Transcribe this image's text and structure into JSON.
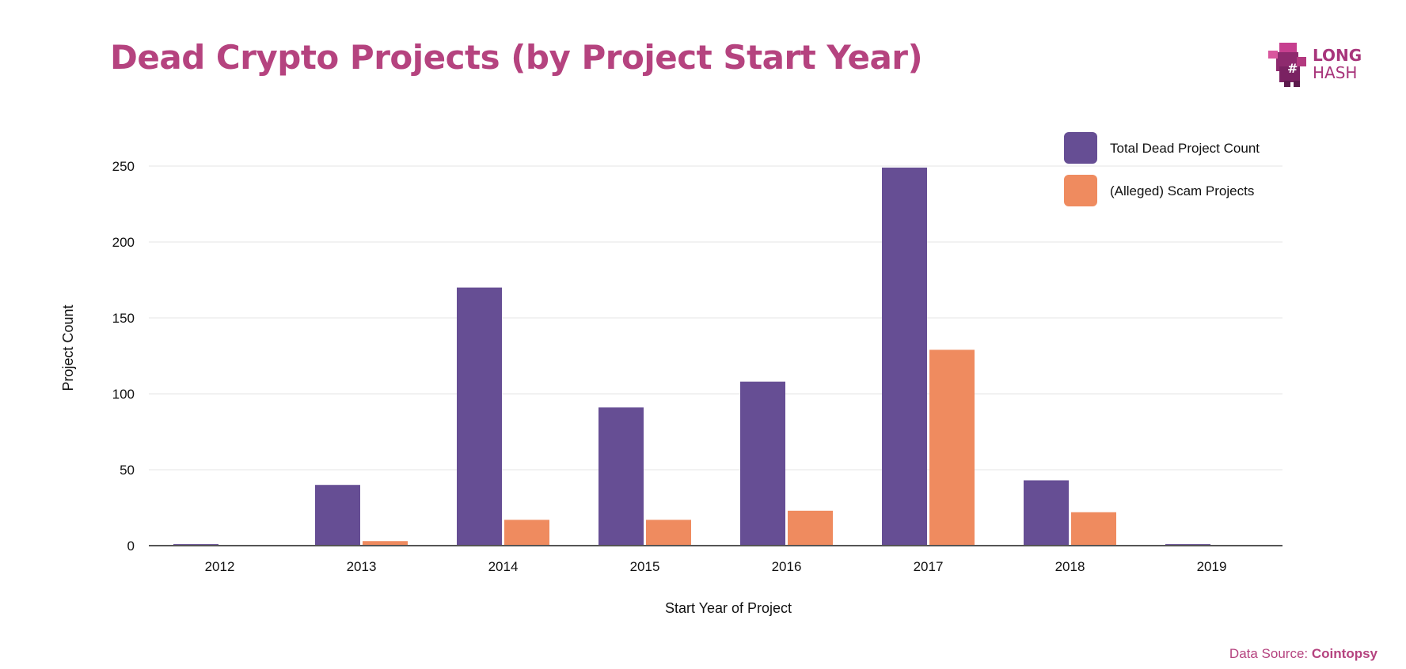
{
  "title": "Dead Crypto Projects (by Project Start Year)",
  "logo": {
    "line1": "LONG",
    "line2": "HASH",
    "color": "#a8357b"
  },
  "source": {
    "label": "Data Source:",
    "name": "Cointopsy"
  },
  "colors": {
    "title": "#b5437f",
    "total": "#664e94",
    "scam": "#ef8b5f",
    "grid": "#e6e6e6",
    "axis": "#555555"
  },
  "chart_data": {
    "type": "bar",
    "title": "Dead Crypto Projects (by Project Start Year)",
    "xlabel": "Start Year of Project",
    "ylabel": "Project Count",
    "categories": [
      "2012",
      "2013",
      "2014",
      "2015",
      "2016",
      "2017",
      "2018",
      "2019"
    ],
    "series": [
      {
        "name": "Total Dead Project Count",
        "values": [
          1,
          40,
          170,
          91,
          108,
          249,
          43,
          1
        ]
      },
      {
        "name": "(Alleged) Scam Projects",
        "values": [
          0,
          3,
          17,
          17,
          23,
          129,
          22,
          0
        ]
      }
    ],
    "ylim": [
      0,
      250
    ],
    "yticks": [
      0,
      50,
      100,
      150,
      200,
      250
    ],
    "grid": true,
    "legend_position": "top-right"
  }
}
